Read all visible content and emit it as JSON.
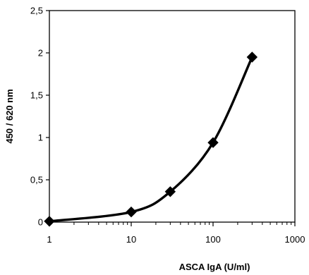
{
  "chart_data": {
    "type": "line",
    "title": "",
    "xlabel": "ASCA IgA (U/ml)",
    "ylabel": "450 / 620 nm",
    "x_scale": "log",
    "xlim": [
      1,
      1000
    ],
    "ylim": [
      0,
      2.5
    ],
    "x_ticks": [
      1,
      10,
      100,
      1000
    ],
    "x_tick_labels": [
      "1",
      "10",
      "100",
      "1000"
    ],
    "y_ticks": [
      0,
      0.5,
      1,
      1.5,
      2,
      2.5
    ],
    "y_tick_labels": [
      "0",
      "0,5",
      "1",
      "1,5",
      "2",
      "2,5"
    ],
    "grid": false,
    "legend": "none",
    "marker": "diamond",
    "line_color": "#000000",
    "series": [
      {
        "x": [
          1,
          10,
          30,
          100,
          300
        ],
        "y": [
          0.01,
          0.12,
          0.36,
          0.94,
          1.95
        ]
      }
    ]
  }
}
